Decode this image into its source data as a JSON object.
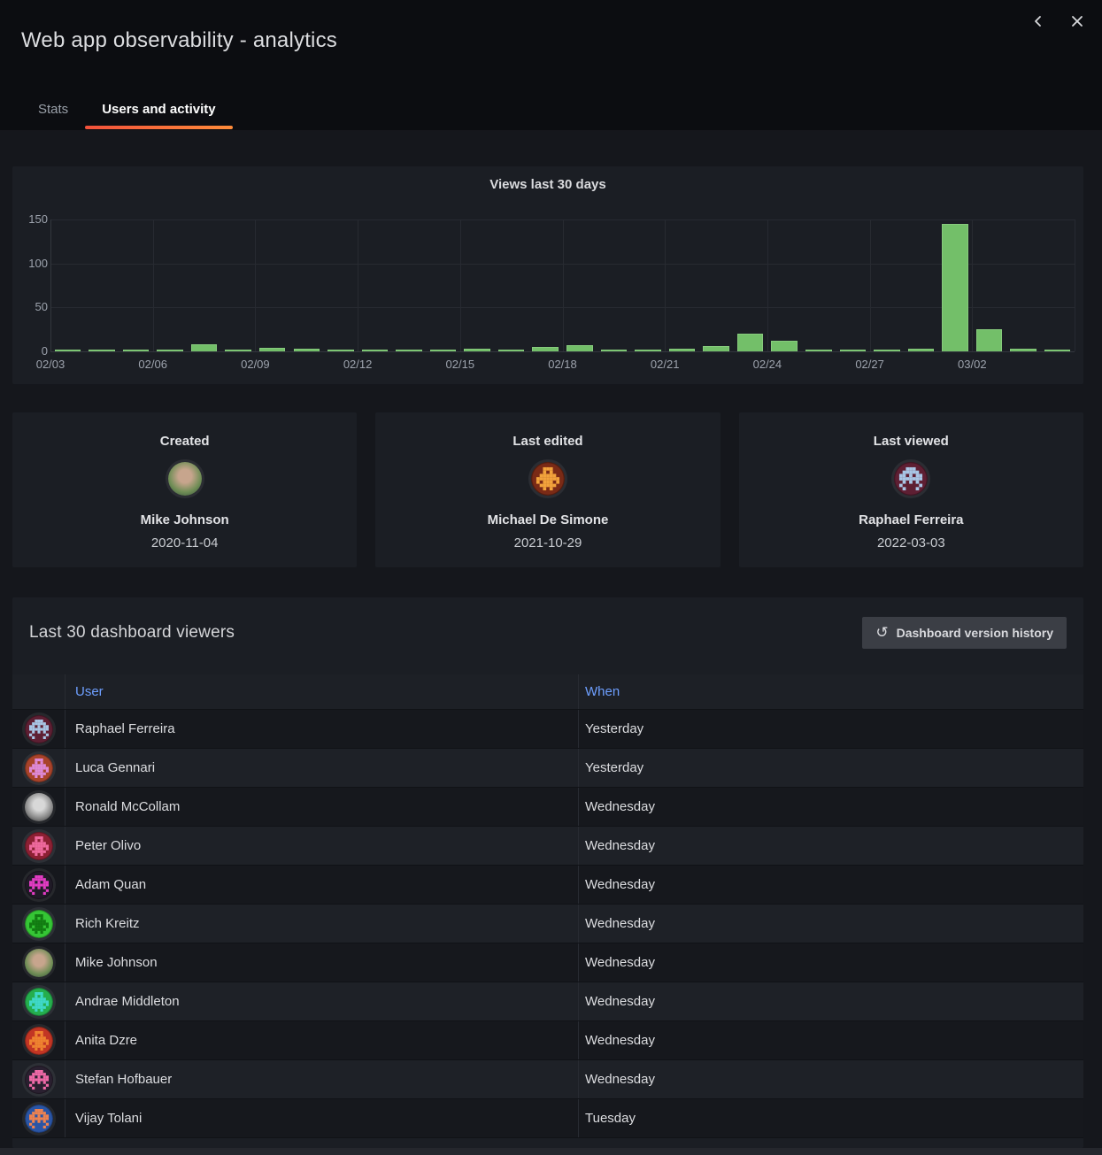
{
  "header": {
    "title": "Web app observability - analytics"
  },
  "window_controls": {
    "back_icon": "chevron-left",
    "close_icon": "close"
  },
  "tabs": [
    {
      "label": "Stats",
      "active": false
    },
    {
      "label": "Users and activity",
      "active": true
    }
  ],
  "accent": {
    "tab_underline_gradient": [
      "#f2513b",
      "#ff8c3a"
    ],
    "link_blue": "#6e9fff",
    "bar_green": "#73bf69"
  },
  "chart_data": {
    "type": "bar",
    "title": "Views last 30 days",
    "x": [
      "02/03",
      "02/04",
      "02/05",
      "02/06",
      "02/07",
      "02/08",
      "02/09",
      "02/10",
      "02/11",
      "02/12",
      "02/13",
      "02/14",
      "02/15",
      "02/16",
      "02/17",
      "02/18",
      "02/19",
      "02/20",
      "02/21",
      "02/22",
      "02/23",
      "02/24",
      "02/25",
      "02/26",
      "02/27",
      "02/28",
      "03/01",
      "03/02",
      "03/03",
      "03/04"
    ],
    "values": [
      1,
      2,
      1,
      1,
      8,
      2,
      4,
      3,
      1,
      1,
      1,
      2,
      3,
      2,
      5,
      7,
      2,
      2,
      3,
      6,
      20,
      12,
      1,
      2,
      1,
      3,
      145,
      25,
      3,
      1
    ],
    "ylim": [
      0,
      150
    ],
    "yticks": [
      0,
      50,
      100,
      150
    ],
    "xtick_labels": [
      "02/03",
      "02/06",
      "02/09",
      "02/12",
      "02/15",
      "02/18",
      "02/21",
      "02/24",
      "02/27",
      "03/02"
    ],
    "xtick_interval": 3,
    "bar_color": "#73bf69",
    "grid": true,
    "legend": "none",
    "xlabel": "",
    "ylabel": ""
  },
  "cards": [
    {
      "label": "Created",
      "name": "Mike Johnson",
      "date": "2020-11-04",
      "avatar": {
        "type": "photo",
        "colors": [
          "#c7a58d",
          "#6f8d55",
          "#31493b"
        ]
      }
    },
    {
      "label": "Last edited",
      "name": "Michael De Simone",
      "date": "2021-10-29",
      "avatar": {
        "type": "pixel",
        "pattern": "robot",
        "bg": "#7a2a16",
        "fg": "#f2a33c"
      }
    },
    {
      "label": "Last viewed",
      "name": "Raphael Ferreira",
      "date": "2022-03-03",
      "avatar": {
        "type": "pixel",
        "pattern": "invader",
        "bg": "#5e1f33",
        "fg": "#a9c6e6"
      }
    }
  ],
  "viewers": {
    "title": "Last 30 dashboard viewers",
    "button": {
      "label": "Dashboard version history",
      "icon": "history-icon",
      "glyph": "↺"
    },
    "columns": [
      "User",
      "When"
    ],
    "rows": [
      {
        "user": "Raphael Ferreira",
        "when": "Yesterday",
        "avatar": {
          "type": "pixel",
          "pattern": "invader",
          "bg": "#5e1f33",
          "fg": "#a9c6e6"
        }
      },
      {
        "user": "Luca Gennari",
        "when": "Yesterday",
        "avatar": {
          "type": "pixel",
          "pattern": "robot",
          "bg": "#a8432a",
          "fg": "#de8ad8"
        }
      },
      {
        "user": "Ronald McCollam",
        "when": "Wednesday",
        "avatar": {
          "type": "photo",
          "colors": [
            "#d8d8d8",
            "#888888",
            "#222222"
          ]
        }
      },
      {
        "user": "Peter Olivo",
        "when": "Wednesday",
        "avatar": {
          "type": "pixel",
          "pattern": "robot",
          "bg": "#8c2033",
          "fg": "#ef6a9e"
        }
      },
      {
        "user": "Adam Quan",
        "when": "Wednesday",
        "avatar": {
          "type": "pixel",
          "pattern": "invader",
          "bg": "#201b27",
          "fg": "#e23cc3"
        }
      },
      {
        "user": "Rich Kreitz",
        "when": "Wednesday",
        "avatar": {
          "type": "pixel",
          "pattern": "robot",
          "bg": "#35c535",
          "fg": "#117a11"
        }
      },
      {
        "user": "Mike Johnson",
        "when": "Wednesday",
        "avatar": {
          "type": "photo",
          "colors": [
            "#c7a58d",
            "#6f8d55",
            "#31493b"
          ]
        }
      },
      {
        "user": "Andrae Middleton",
        "when": "Wednesday",
        "avatar": {
          "type": "pixel",
          "pattern": "robot",
          "bg": "#25ae4d",
          "fg": "#3fd9c9"
        }
      },
      {
        "user": "Anita Dzre",
        "when": "Wednesday",
        "avatar": {
          "type": "pixel",
          "pattern": "robot",
          "bg": "#c23524",
          "fg": "#ef8330"
        }
      },
      {
        "user": "Stefan Hofbauer",
        "when": "Wednesday",
        "avatar": {
          "type": "pixel",
          "pattern": "invader",
          "bg": "#2a2030",
          "fg": "#f06aa8"
        }
      },
      {
        "user": "Vijay Tolani",
        "when": "Tuesday",
        "avatar": {
          "type": "pixel",
          "pattern": "invader",
          "bg": "#2a55a5",
          "fg": "#ef8350"
        }
      }
    ]
  }
}
